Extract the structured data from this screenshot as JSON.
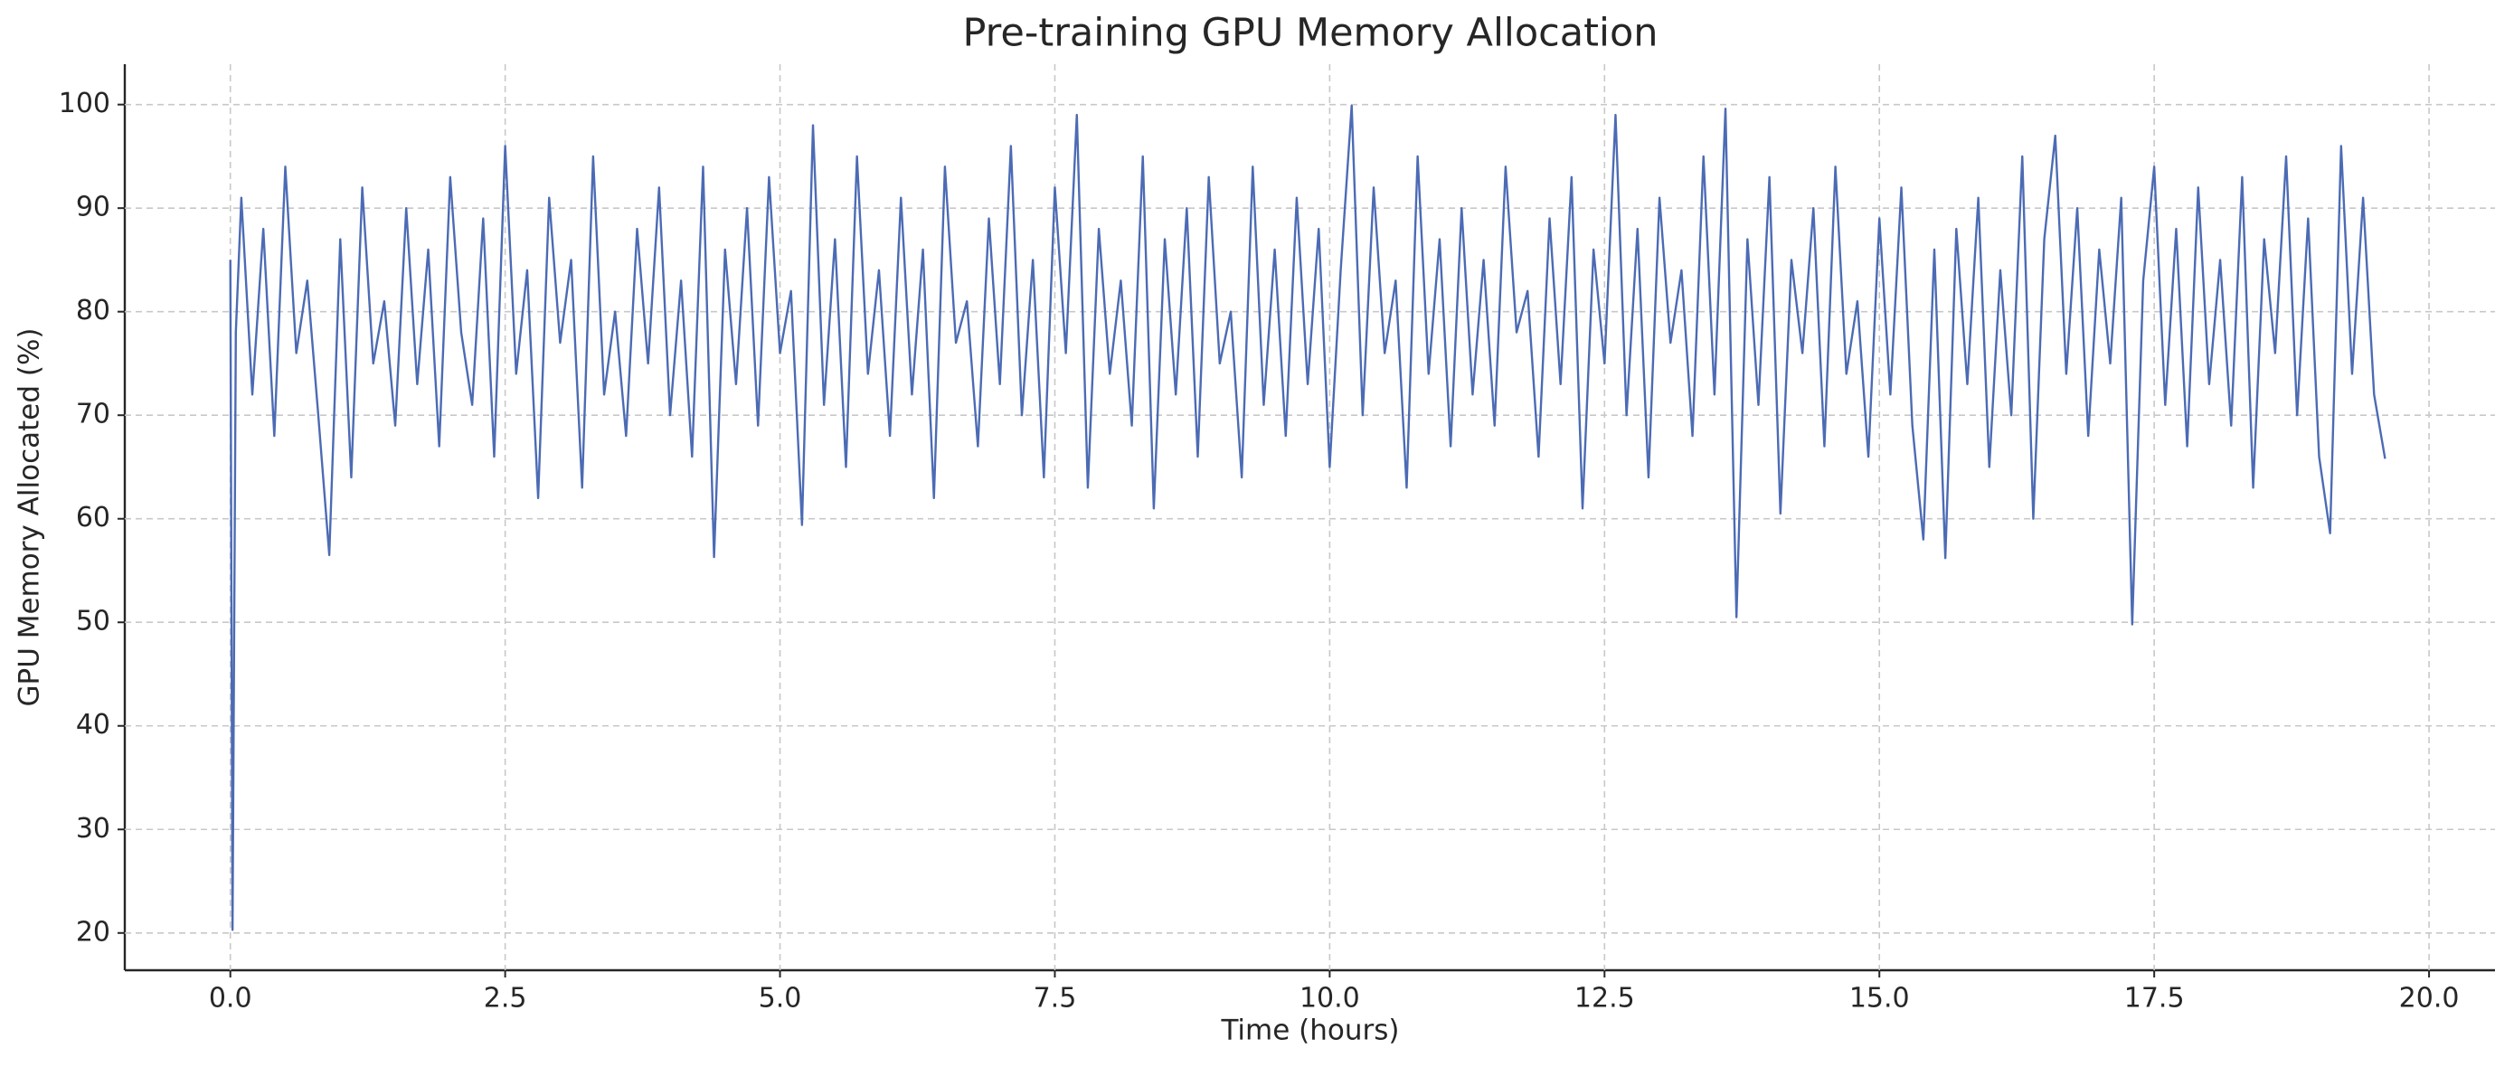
{
  "chart_data": {
    "type": "line",
    "title": "Pre-training GPU Memory Allocation",
    "x_label": "Time (hours)",
    "y_label": "GPU Memory Allocated (%)",
    "color": "#4c6bb4",
    "grid": true,
    "xlim": [
      -0.96,
      20.6
    ],
    "ylim": [
      16.4,
      103.9
    ],
    "xticks": [
      {
        "value": 0,
        "label": "0.0"
      },
      2.5,
      {
        "value": 5,
        "label": "5.0"
      },
      7.5,
      {
        "value": 10,
        "label": "10.0"
      },
      12.5,
      {
        "value": 15,
        "label": "15.0"
      },
      17.5,
      {
        "value": 20,
        "label": "20.0"
      }
    ],
    "yticks": [
      20,
      30,
      40,
      50,
      60,
      70,
      80,
      90,
      100
    ],
    "x": [
      0,
      0.02,
      0.05,
      0.1,
      0.2,
      0.3,
      0.4,
      0.5,
      0.6,
      0.7,
      0.8,
      0.9,
      1.0,
      1.1,
      1.2,
      1.3,
      1.4,
      1.5,
      1.6,
      1.7,
      1.8,
      1.9,
      2.0,
      2.1,
      2.2,
      2.3,
      2.4,
      2.5,
      2.6,
      2.7,
      2.8,
      2.9,
      3.0,
      3.1,
      3.2,
      3.3,
      3.4,
      3.5,
      3.6,
      3.7,
      3.8,
      3.9,
      4.0,
      4.1,
      4.2,
      4.3,
      4.4,
      4.5,
      4.6,
      4.7,
      4.8,
      4.9,
      5.0,
      5.1,
      5.2,
      5.3,
      5.4,
      5.5,
      5.6,
      5.7,
      5.8,
      5.9,
      6.0,
      6.1,
      6.2,
      6.3,
      6.4,
      6.5,
      6.6,
      6.7,
      6.8,
      6.9,
      7.0,
      7.1,
      7.2,
      7.3,
      7.4,
      7.5,
      7.6,
      7.7,
      7.8,
      7.9,
      8.0,
      8.1,
      8.2,
      8.3,
      8.4,
      8.5,
      8.6,
      8.7,
      8.8,
      8.9,
      9.0,
      9.1,
      9.2,
      9.3,
      9.4,
      9.5,
      9.6,
      9.7,
      9.8,
      9.9,
      10.0,
      10.1,
      10.2,
      10.3,
      10.4,
      10.5,
      10.6,
      10.7,
      10.8,
      10.9,
      11.0,
      11.1,
      11.2,
      11.3,
      11.4,
      11.5,
      11.6,
      11.7,
      11.8,
      11.9,
      12.0,
      12.1,
      12.2,
      12.3,
      12.4,
      12.5,
      12.6,
      12.7,
      12.8,
      12.9,
      13.0,
      13.1,
      13.2,
      13.3,
      13.4,
      13.5,
      13.6,
      13.7,
      13.8,
      13.9,
      14.0,
      14.1,
      14.2,
      14.3,
      14.4,
      14.5,
      14.6,
      14.7,
      14.8,
      14.9,
      15.0,
      15.1,
      15.2,
      15.3,
      15.4,
      15.5,
      15.6,
      15.7,
      15.8,
      15.9,
      16.0,
      16.1,
      16.2,
      16.3,
      16.4,
      16.5,
      16.6,
      16.7,
      16.8,
      16.9,
      17.0,
      17.1,
      17.2,
      17.3,
      17.4,
      17.5,
      17.6,
      17.7,
      17.8,
      17.9,
      18.0,
      18.1,
      18.2,
      18.3,
      18.4,
      18.5,
      18.6,
      18.7,
      18.8,
      18.9,
      19.0,
      19.1,
      19.2,
      19.3,
      19.4,
      19.5,
      19.6
    ],
    "values": [
      85,
      20.3,
      78,
      91,
      72,
      88,
      68,
      94,
      76,
      83,
      70,
      56.5,
      87,
      64,
      92,
      75,
      81,
      69,
      90,
      73,
      86,
      67,
      93,
      78,
      71,
      89,
      66,
      96,
      74,
      84,
      62,
      91,
      77,
      85,
      63,
      95,
      72,
      80,
      68,
      88,
      75,
      92,
      70,
      83,
      66,
      94,
      56.3,
      86,
      73,
      90,
      69,
      93,
      76,
      82,
      59.4,
      98,
      71,
      87,
      65,
      95,
      74,
      84,
      68,
      91,
      72,
      86,
      62,
      94,
      77,
      81,
      67,
      89,
      73,
      96,
      70,
      85,
      64,
      92,
      76,
      99,
      63,
      88,
      74,
      83,
      69,
      95,
      61,
      87,
      72,
      90,
      66,
      93,
      75,
      80,
      64,
      94,
      71,
      86,
      68,
      91,
      73,
      88,
      65,
      84,
      99.9,
      70,
      92,
      76,
      83,
      63,
      95,
      74,
      87,
      67,
      90,
      72,
      85,
      69,
      94,
      78,
      82,
      66,
      89,
      73,
      93,
      61,
      86,
      75,
      99,
      70,
      88,
      64,
      91,
      77,
      84,
      68,
      95,
      72,
      99.6,
      50.5,
      87,
      71,
      93,
      60.5,
      85,
      76,
      90,
      67,
      94,
      74,
      81,
      66,
      89,
      72,
      92,
      69,
      58,
      86,
      56.2,
      88,
      73,
      91,
      65,
      84,
      70,
      95,
      60,
      87,
      97,
      74,
      90,
      68,
      86,
      75,
      91,
      49.8,
      83,
      94,
      71,
      88,
      67,
      92,
      73,
      85,
      69,
      93,
      63,
      87,
      76,
      95,
      70,
      89,
      66,
      58.6,
      96,
      74,
      91,
      72,
      65.8
    ]
  }
}
